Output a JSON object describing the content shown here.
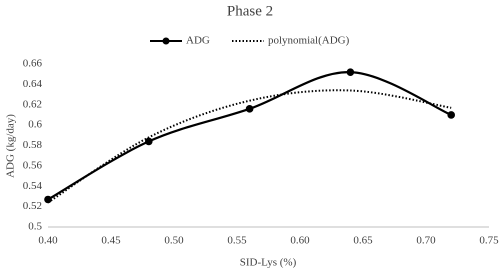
{
  "chart_data": {
    "type": "line",
    "title": "Phase 2",
    "x_label": "SID-Lys (%)",
    "y_label": "ADG (kg/day)",
    "x": [
      0.4,
      0.48,
      0.56,
      0.64,
      0.72
    ],
    "series": [
      {
        "name": "ADG",
        "color": "#000000",
        "style": "solid",
        "markers": true,
        "values": [
          0.527,
          0.584,
          0.616,
          0.652,
          0.61
        ]
      },
      {
        "name": "polynomial(ADG)",
        "color": "#000000",
        "style": "dotted",
        "markers": false,
        "values": [
          0.524,
          0.588,
          0.624,
          0.634,
          0.617
        ]
      }
    ],
    "xlim": [
      0.4,
      0.75
    ],
    "xticks": [
      {
        "value": 0.4,
        "label": "0.40"
      },
      0.45,
      {
        "value": 0.5,
        "label": "0.50"
      },
      0.55,
      {
        "value": 0.6,
        "label": "0.60"
      },
      0.65,
      {
        "value": 0.7,
        "label": "0.70"
      },
      0.75
    ],
    "ylim": [
      0.5,
      0.66
    ],
    "yticks": [
      0.5,
      0.52,
      0.54,
      0.56,
      0.58,
      0.6,
      0.62,
      0.64,
      0.66
    ],
    "grid": false,
    "legend": "top"
  }
}
